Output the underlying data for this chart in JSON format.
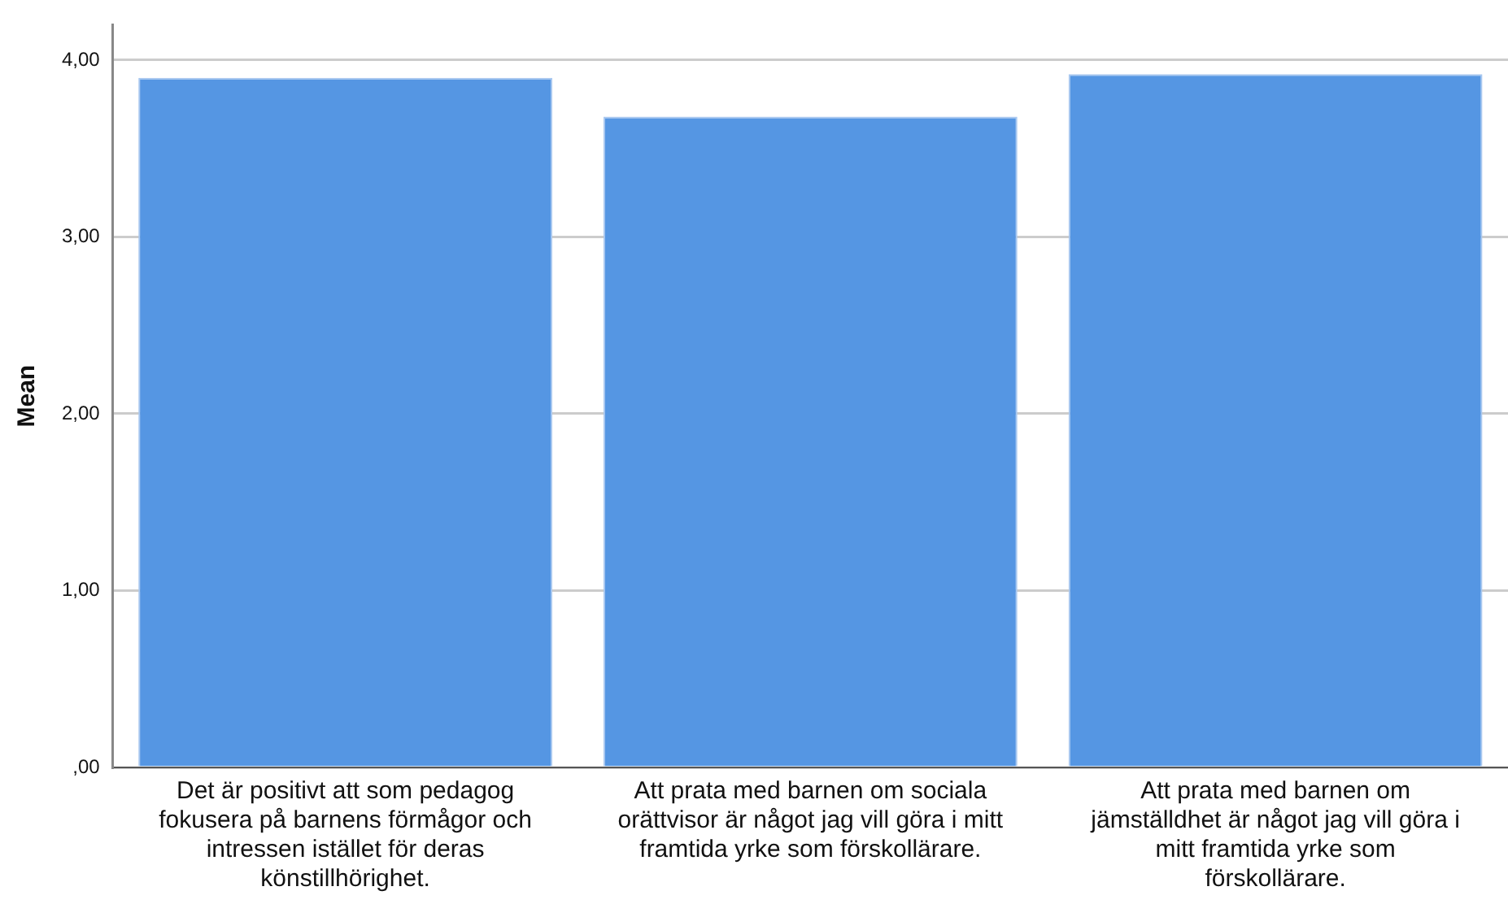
{
  "chart_data": {
    "type": "bar",
    "ylabel": "Mean",
    "categories": [
      "Det är positivt att som pedagog fokusera på barnens förmågor och intressen istället för deras könstillhörighet.",
      "Att prata med barnen om sociala orättvisor är något jag vill göra i mitt framtida yrke som förskollärare.",
      "Att prata med barnen om jämställdhet är något jag vill göra i mitt framtida yrke som förskollärare."
    ],
    "values": [
      3.9,
      3.68,
      3.92
    ],
    "color": "#5596e3",
    "ylim": [
      0,
      4.2
    ],
    "yticks": [
      {
        "value": 0,
        "label": ",00"
      },
      {
        "value": 1,
        "label": "1,00"
      },
      {
        "value": 2,
        "label": "2,00"
      },
      {
        "value": 3,
        "label": "3,00"
      },
      {
        "value": 4,
        "label": "4,00"
      }
    ],
    "grid": "y"
  }
}
